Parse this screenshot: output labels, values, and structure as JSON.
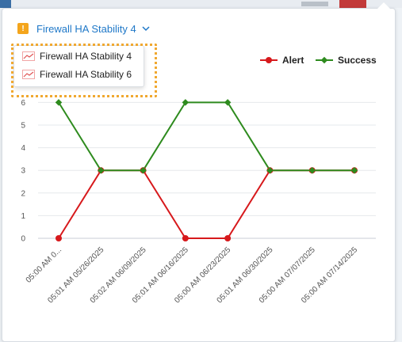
{
  "header": {
    "title": "Firewall HA Stability 4",
    "badge": "!"
  },
  "dropdown": {
    "items": [
      {
        "label": "Firewall HA Stability 4",
        "icon": "line-chart-icon"
      },
      {
        "label": "Firewall HA Stability 6",
        "icon": "line-chart-icon"
      }
    ]
  },
  "legend": [
    {
      "label": "Alert",
      "color": "#d7191c"
    },
    {
      "label": "Success",
      "color": "#2e8b1e"
    }
  ],
  "chart_data": {
    "type": "line",
    "categories": [
      "05:00 AM 0...",
      "05:01 AM 05/26/2025",
      "05:02 AM 06/09/2025",
      "05:01 AM 06/16/2025",
      "05:00 AM 06/23/2025",
      "05:01 AM 06/30/2025",
      "05:00 AM 07/07/2025",
      "05:00 AM 07/14/2025"
    ],
    "series": [
      {
        "name": "Alert",
        "color": "#d7191c",
        "values": [
          0,
          3,
          3,
          0,
          0,
          3,
          3,
          3
        ]
      },
      {
        "name": "Success",
        "color": "#2e8b1e",
        "values": [
          6,
          3,
          3,
          6,
          6,
          3,
          3,
          3
        ]
      }
    ],
    "yticks": [
      0,
      1,
      2,
      3,
      4,
      5,
      6
    ],
    "ylim": [
      0,
      7
    ],
    "grid": true,
    "legend_position": "top-right"
  }
}
